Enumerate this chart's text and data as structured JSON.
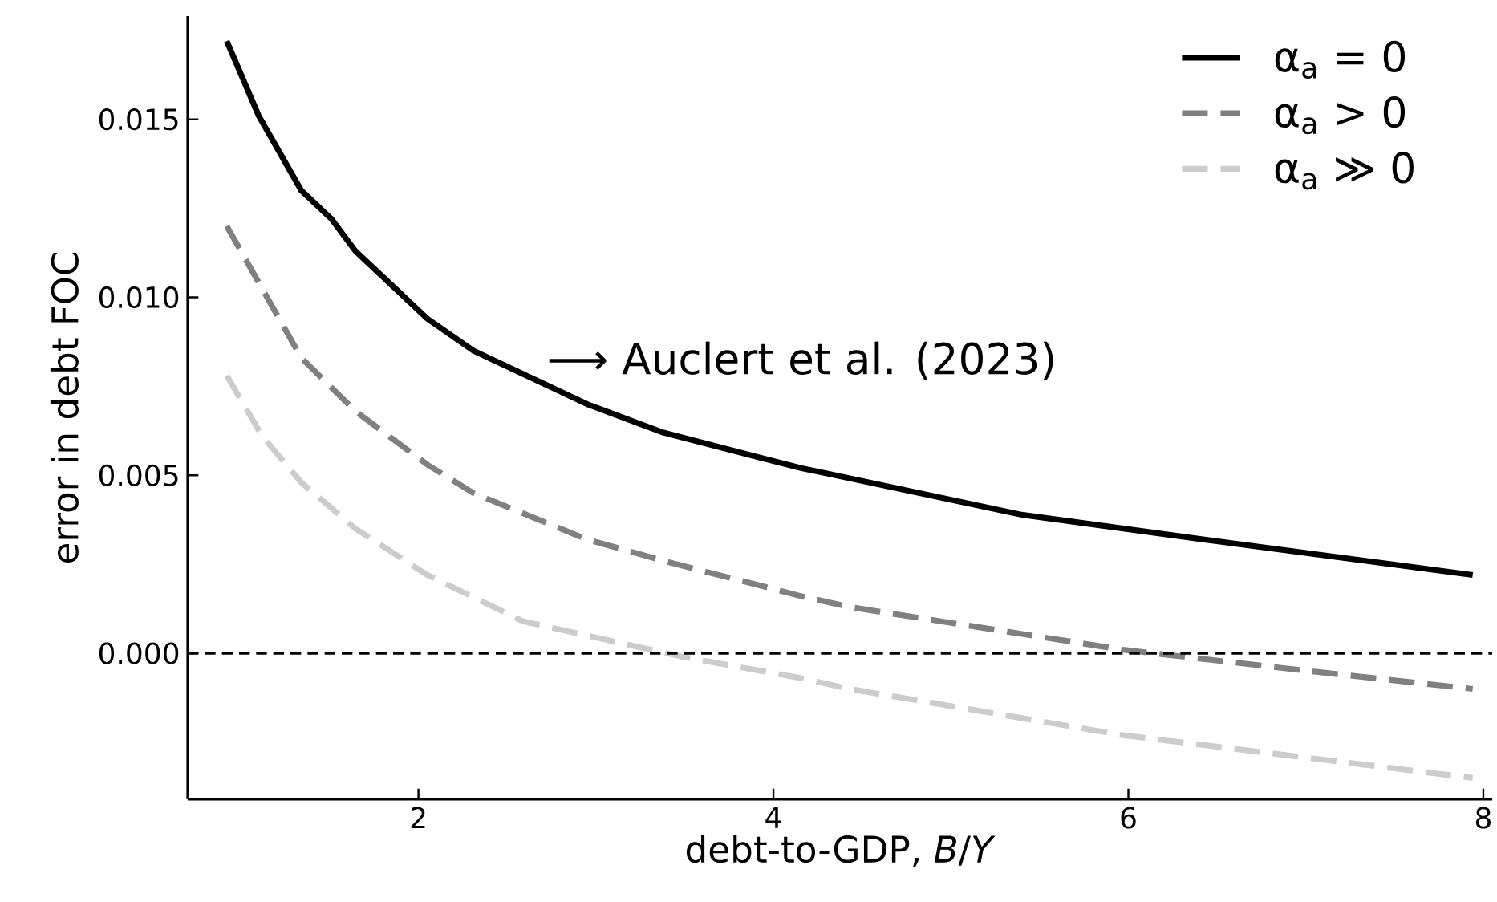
{
  "chart_data": {
    "type": "line",
    "xlabel": "debt-to-GDP, *B*/*Y*",
    "ylabel": "error in debt FOC",
    "x": [
      0.92,
      1.1,
      1.34,
      1.51,
      1.645,
      2.05,
      2.31,
      2.95,
      3.38,
      3.92,
      4.16,
      5.39,
      6.42,
      7.94
    ],
    "series": [
      {
        "name": "α$_{a}$ = 0",
        "color": "#000000",
        "line_style": "solid",
        "values": [
          0.0172,
          0.0151,
          0.013,
          0.0122,
          0.0113,
          0.0094,
          0.0085,
          0.007,
          0.0062,
          0.0055,
          0.0052,
          0.0039,
          0.0032,
          0.0022
        ]
      },
      {
        "name": "α$_{a}$ > 0",
        "color": "#808080",
        "line_style": "dashed",
        "x": [
          0.92,
          1.34,
          1.645,
          2.05,
          2.31,
          2.95,
          3.38,
          4.16,
          4.43,
          5.97,
          7.02,
          7.94
        ],
        "values": [
          0.012,
          0.0083,
          0.0068,
          0.0053,
          0.0045,
          0.0032,
          0.0026,
          0.0016,
          0.0013,
          0.0001,
          -0.0005,
          -0.001
        ]
      },
      {
        "name": "α$_{a}$ ≫ 0",
        "color": "#cccccc",
        "line_style": "dashed",
        "x": [
          0.92,
          1.12,
          1.34,
          1.645,
          2.05,
          2.59,
          3.49,
          4.16,
          4.43,
          5.97,
          7.94
        ],
        "values": [
          0.0078,
          0.0061,
          0.0048,
          0.0035,
          0.0022,
          0.0009,
          -0.0001,
          -0.0007,
          -0.001,
          -0.0023,
          -0.0035
        ]
      }
    ],
    "xlim": [
      0.7,
      8.05
    ],
    "ylim": [
      -0.0041,
      0.0179
    ],
    "xticks": [
      2,
      4,
      6,
      8
    ],
    "yticks": [
      {
        "value": 0,
        "label": "0.000"
      },
      {
        "value": 0.005,
        "label": "0.005"
      },
      {
        "value": 0.01,
        "label": "0.010"
      },
      {
        "value": 0.015,
        "label": "0.015"
      }
    ],
    "ref_lines": [
      {
        "axis": "y",
        "value": 0,
        "color": "#000000",
        "line_style": "dashed"
      }
    ],
    "annotations": [
      "⟶ Auclert et al. (2023)"
    ],
    "legend": "top right",
    "grid": false,
    "marker": "none"
  }
}
